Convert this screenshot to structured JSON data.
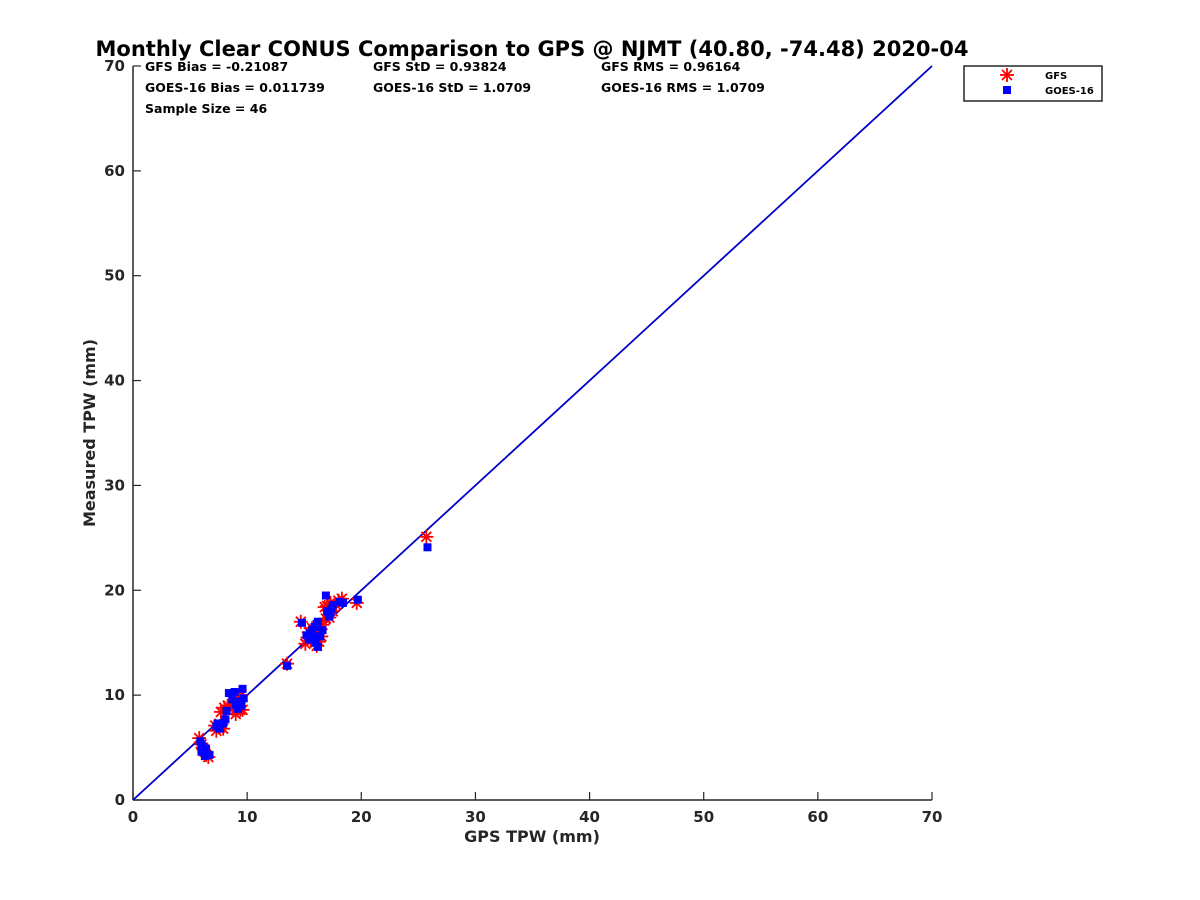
{
  "chart_data": {
    "type": "scatter",
    "title": "Monthly Clear CONUS Comparison to GPS @ NJMT (40.80, -74.48) 2020-04",
    "xlabel": "GPS TPW (mm)",
    "ylabel": "Measured TPW (mm)",
    "xlim": [
      0,
      70
    ],
    "ylim": [
      0,
      70
    ],
    "xticks": [
      0,
      10,
      20,
      30,
      40,
      50,
      60,
      70
    ],
    "yticks": [
      0,
      10,
      20,
      30,
      40,
      50,
      60,
      70
    ],
    "grid": false,
    "legend_position": "outside-top-right",
    "stats": {
      "gfs_bias": "GFS Bias = -0.21087",
      "gfs_std": "GFS StD = 0.93824",
      "gfs_rms": "GFS RMS = 0.96164",
      "goes_bias": "GOES-16 Bias = 0.011739",
      "goes_std": "GOES-16 StD = 1.0709",
      "goes_rms": "GOES-16 RMS = 1.0709",
      "sample_size": "Sample Size = 46"
    },
    "reference_line": {
      "x": [
        0,
        70
      ],
      "y": [
        0,
        70
      ],
      "color": "#0000cc"
    },
    "series": [
      {
        "name": "GFS",
        "marker": "asterisk",
        "color": "#ff0000",
        "points": [
          [
            5.8,
            5.9
          ],
          [
            6.0,
            5.3
          ],
          [
            6.2,
            4.8
          ],
          [
            6.4,
            4.3
          ],
          [
            6.6,
            4.1
          ],
          [
            6.3,
            4.6
          ],
          [
            7.3,
            6.6
          ],
          [
            7.6,
            6.9
          ],
          [
            7.9,
            6.8
          ],
          [
            7.7,
            8.4
          ],
          [
            8.0,
            8.8
          ],
          [
            8.3,
            9.0
          ],
          [
            8.7,
            8.7
          ],
          [
            9.0,
            8.2
          ],
          [
            9.2,
            9.3
          ],
          [
            9.4,
            8.6
          ],
          [
            9.5,
            10.0
          ],
          [
            9.6,
            8.6
          ],
          [
            13.5,
            13.0
          ],
          [
            14.7,
            17.0
          ],
          [
            15.1,
            14.9
          ],
          [
            15.4,
            16.0
          ],
          [
            15.7,
            16.4
          ],
          [
            15.9,
            15.3
          ],
          [
            16.1,
            14.7
          ],
          [
            16.3,
            15.1
          ],
          [
            16.5,
            15.6
          ],
          [
            16.6,
            16.7
          ],
          [
            16.8,
            18.4
          ],
          [
            17.0,
            18.5
          ],
          [
            17.2,
            17.4
          ],
          [
            17.5,
            18.0
          ],
          [
            17.8,
            18.6
          ],
          [
            18.0,
            19.0
          ],
          [
            18.3,
            19.2
          ],
          [
            19.6,
            18.8
          ],
          [
            25.7,
            25.1
          ],
          [
            16.0,
            16.0
          ],
          [
            15.3,
            15.5
          ],
          [
            17.3,
            18.8
          ],
          [
            8.8,
            9.4
          ],
          [
            7.2,
            7.1
          ],
          [
            6.1,
            5.0
          ],
          [
            9.3,
            9.8
          ],
          [
            16.9,
            17.3
          ],
          [
            15.6,
            15.2
          ]
        ]
      },
      {
        "name": "GOES-16",
        "marker": "square",
        "color": "#0000ff",
        "points": [
          [
            5.9,
            5.6
          ],
          [
            6.1,
            5.1
          ],
          [
            6.0,
            4.6
          ],
          [
            6.3,
            4.2
          ],
          [
            6.7,
            4.3
          ],
          [
            6.4,
            4.9
          ],
          [
            7.3,
            7.0
          ],
          [
            7.6,
            6.8
          ],
          [
            7.9,
            7.3
          ],
          [
            8.1,
            7.7
          ],
          [
            8.2,
            8.5
          ],
          [
            8.4,
            10.2
          ],
          [
            8.9,
            10.3
          ],
          [
            9.0,
            9.1
          ],
          [
            9.2,
            8.7
          ],
          [
            9.4,
            9.4
          ],
          [
            9.6,
            10.6
          ],
          [
            9.7,
            9.7
          ],
          [
            13.5,
            12.8
          ],
          [
            14.8,
            16.9
          ],
          [
            15.2,
            15.7
          ],
          [
            15.5,
            15.9
          ],
          [
            15.7,
            16.2
          ],
          [
            15.9,
            16.5
          ],
          [
            16.0,
            15.0
          ],
          [
            16.2,
            14.6
          ],
          [
            16.2,
            17.0
          ],
          [
            16.4,
            15.6
          ],
          [
            16.6,
            16.2
          ],
          [
            16.9,
            19.5
          ],
          [
            17.0,
            18.0
          ],
          [
            17.2,
            17.5
          ],
          [
            17.4,
            18.2
          ],
          [
            18.1,
            18.9
          ],
          [
            18.4,
            18.8
          ],
          [
            19.7,
            19.1
          ],
          [
            25.8,
            24.1
          ],
          [
            16.1,
            16.8
          ],
          [
            15.4,
            15.3
          ],
          [
            17.5,
            18.6
          ],
          [
            8.7,
            9.6
          ],
          [
            7.4,
            7.3
          ],
          [
            6.0,
            5.3
          ],
          [
            9.5,
            9.0
          ],
          [
            17.1,
            17.9
          ],
          [
            15.8,
            15.6
          ]
        ]
      }
    ]
  }
}
